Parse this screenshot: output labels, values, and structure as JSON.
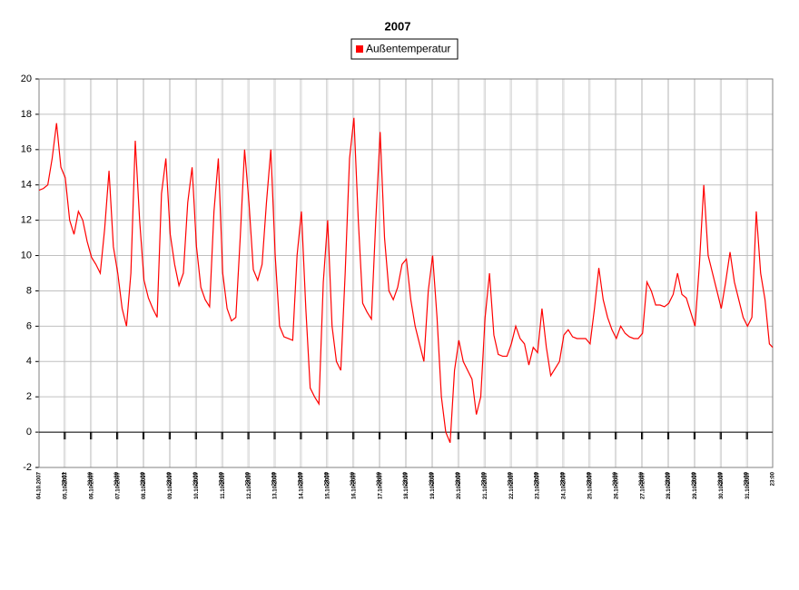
{
  "chart_data": {
    "type": "line",
    "title": "2007",
    "series": [
      {
        "name": "Außentemperatur",
        "color": "#ff0000",
        "values": [
          13.7,
          13.8,
          14.0,
          15.5,
          17.5,
          15.0,
          14.4,
          12.0,
          11.2,
          12.5,
          12.0,
          10.8,
          9.9,
          9.5,
          9.0,
          11.5,
          14.8,
          10.5,
          9.0,
          7.0,
          6.0,
          9.0,
          16.5,
          12.0,
          8.6,
          7.6,
          7.0,
          6.5,
          13.5,
          15.5,
          11.2,
          9.5,
          8.3,
          9.0,
          13.0,
          15.0,
          10.5,
          8.2,
          7.5,
          7.1,
          12.5,
          15.5,
          9.0,
          7.0,
          6.3,
          6.5,
          11.0,
          16.0,
          13.0,
          9.2,
          8.6,
          9.5,
          13.0,
          16.0,
          10.0,
          6.0,
          5.4,
          5.3,
          5.2,
          10.0,
          12.5,
          7.0,
          2.5,
          2.0,
          1.6,
          8.5,
          12.0,
          6.0,
          4.0,
          3.5,
          9.0,
          15.5,
          17.8,
          12.0,
          7.3,
          6.8,
          6.4,
          12.0,
          17.0,
          11.0,
          8.0,
          7.5,
          8.2,
          9.5,
          9.8,
          7.5,
          6.0,
          5.0,
          4.0,
          8.0,
          10.0,
          6.5,
          2.0,
          0.0,
          -0.6,
          3.5,
          5.2,
          4.0,
          3.5,
          3.0,
          1.0,
          2.0,
          6.5,
          9.0,
          5.5,
          4.4,
          4.3,
          4.3,
          5.0,
          6.0,
          5.3,
          5.0,
          3.8,
          4.8,
          4.5,
          7.0,
          4.8,
          3.2,
          3.6,
          4.0,
          5.5,
          5.8,
          5.4,
          5.3,
          5.3,
          5.3,
          5.0,
          7.0,
          9.3,
          7.5,
          6.5,
          5.8,
          5.3,
          6.0,
          5.6,
          5.4,
          5.3,
          5.3,
          5.6,
          8.5,
          8.0,
          7.2,
          7.2,
          7.1,
          7.3,
          7.8,
          9.0,
          7.8,
          7.6,
          6.8,
          6.0,
          9.5,
          14.0,
          10.0,
          9.0,
          8.0,
          7.0,
          8.5,
          10.2,
          8.5,
          7.5,
          6.5,
          6.0,
          6.5,
          12.5,
          9.0,
          7.5,
          5.0,
          4.8
        ]
      }
    ],
    "x": [
      0,
      4,
      8,
      12,
      16,
      20,
      24,
      28,
      32,
      36,
      40,
      44,
      48,
      52,
      56,
      60,
      64,
      68,
      72,
      76,
      80,
      84,
      88,
      92,
      96,
      100,
      104,
      108,
      112,
      116,
      120,
      124,
      128,
      132,
      136,
      140,
      144,
      148,
      152,
      156,
      160,
      164,
      168,
      172,
      176,
      180,
      184,
      188,
      192,
      196,
      200,
      204,
      208,
      212,
      216,
      220,
      224,
      228,
      232,
      236,
      240,
      244,
      248,
      252,
      256,
      260,
      264,
      268,
      272,
      276,
      280,
      284,
      288,
      292,
      296,
      300,
      304,
      308,
      312,
      316,
      320,
      324,
      328,
      332,
      336,
      340,
      344,
      348,
      352,
      356,
      360,
      364,
      368,
      372,
      376,
      380,
      384,
      388,
      392,
      396,
      400,
      404,
      408,
      412,
      416,
      420,
      424,
      428,
      432,
      436,
      440,
      444,
      448,
      452,
      456,
      460,
      464,
      468,
      472,
      476,
      480,
      484,
      488,
      492,
      496,
      500,
      504,
      508,
      512,
      516,
      520,
      524,
      528,
      532,
      536,
      540,
      544,
      548,
      552,
      556,
      560,
      564,
      568,
      572,
      576,
      580,
      584,
      588,
      592,
      596,
      600,
      604,
      608,
      612,
      616,
      620,
      624,
      628,
      632,
      636,
      640,
      644,
      648,
      652,
      656,
      660,
      664,
      668,
      671
    ],
    "xlim": [
      0,
      671
    ],
    "xticks": [
      {
        "value": 0,
        "label": "04.10.2007"
      },
      {
        "value": 23,
        "label": "23:01"
      },
      {
        "value": 24,
        "label": "05.10.2007"
      },
      {
        "value": 47,
        "label": "23:00"
      },
      {
        "value": 48,
        "label": "06.10.2007"
      },
      {
        "value": 71,
        "label": "23:00"
      },
      {
        "value": 72,
        "label": "07.10.2007"
      },
      {
        "value": 95,
        "label": "23:00"
      },
      {
        "value": 96,
        "label": "08.10.2007"
      },
      {
        "value": 119,
        "label": "23:00"
      },
      {
        "value": 120,
        "label": "09.10.2007"
      },
      {
        "value": 143,
        "label": "23:00"
      },
      {
        "value": 144,
        "label": "10.10.2007"
      },
      {
        "value": 167,
        "label": "23:00"
      },
      {
        "value": 168,
        "label": "11.10.2007"
      },
      {
        "value": 191,
        "label": "23:00"
      },
      {
        "value": 192,
        "label": "12.10.2007"
      },
      {
        "value": 215,
        "label": "23:00"
      },
      {
        "value": 216,
        "label": "13.10.2007"
      },
      {
        "value": 239,
        "label": "23:00"
      },
      {
        "value": 240,
        "label": "14.10.2007"
      },
      {
        "value": 263,
        "label": "23:00"
      },
      {
        "value": 264,
        "label": "15.10.2007"
      },
      {
        "value": 287,
        "label": "23:00"
      },
      {
        "value": 288,
        "label": "16.10.2007"
      },
      {
        "value": 311,
        "label": "23:00"
      },
      {
        "value": 312,
        "label": "17.10.2007"
      },
      {
        "value": 335,
        "label": "23:00"
      },
      {
        "value": 336,
        "label": "18.10.2007"
      },
      {
        "value": 359,
        "label": "23:00"
      },
      {
        "value": 360,
        "label": "19.10.2007"
      },
      {
        "value": 383,
        "label": "23:00"
      },
      {
        "value": 384,
        "label": "20.10.2007"
      },
      {
        "value": 407,
        "label": "23:00"
      },
      {
        "value": 408,
        "label": "21.10.2007"
      },
      {
        "value": 431,
        "label": "23:00"
      },
      {
        "value": 432,
        "label": "22.10.2007"
      },
      {
        "value": 455,
        "label": "23:00"
      },
      {
        "value": 456,
        "label": "23.10.2007"
      },
      {
        "value": 479,
        "label": "23:00"
      },
      {
        "value": 480,
        "label": "24.10.2007"
      },
      {
        "value": 503,
        "label": "23:00"
      },
      {
        "value": 504,
        "label": "25.10.2007"
      },
      {
        "value": 527,
        "label": "23:00"
      },
      {
        "value": 528,
        "label": "26.10.2007"
      },
      {
        "value": 551,
        "label": "23:00"
      },
      {
        "value": 552,
        "label": "27.10.2007"
      },
      {
        "value": 575,
        "label": "23:00"
      },
      {
        "value": 576,
        "label": "28.10.2007"
      },
      {
        "value": 599,
        "label": "23:00"
      },
      {
        "value": 600,
        "label": "29.10.2007"
      },
      {
        "value": 623,
        "label": "23:00"
      },
      {
        "value": 624,
        "label": "30.10.2007"
      },
      {
        "value": 647,
        "label": "23:00"
      },
      {
        "value": 648,
        "label": "31.10.2007"
      },
      {
        "value": 671,
        "label": "23:00"
      }
    ],
    "ylim": [
      -2,
      20
    ],
    "yticks": [
      -2,
      0,
      2,
      4,
      6,
      8,
      10,
      12,
      14,
      16,
      18,
      20
    ],
    "grid": true
  }
}
